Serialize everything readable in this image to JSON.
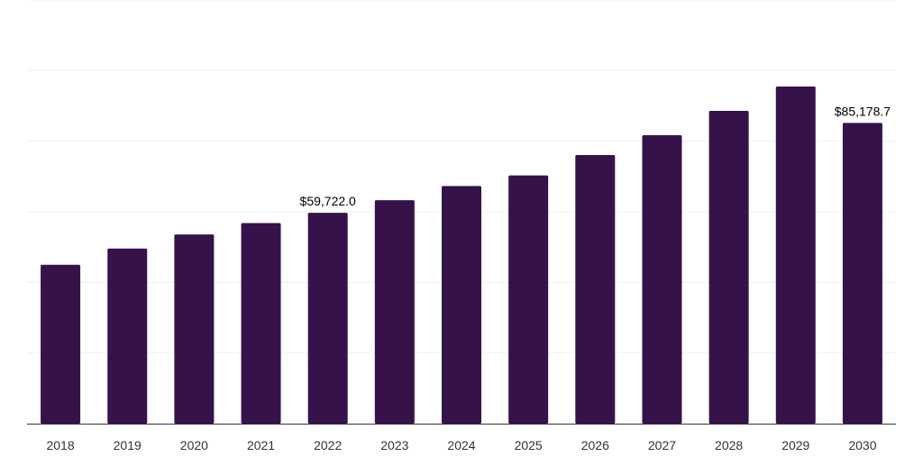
{
  "chart_data": {
    "type": "bar",
    "categories": [
      "2018",
      "2019",
      "2020",
      "2021",
      "2022",
      "2023",
      "2024",
      "2025",
      "2026",
      "2027",
      "2028",
      "2029",
      "2030"
    ],
    "values": [
      45000,
      49600,
      53600,
      56800,
      59722.0,
      63300,
      67300,
      70300,
      76100,
      81700,
      88600,
      95500,
      85178.7
    ],
    "data_labels": [
      {
        "category": "2022",
        "text": "$59,722.0"
      },
      {
        "category": "2030",
        "text": "$85,178.7"
      }
    ],
    "title": "",
    "xlabel": "",
    "ylabel": "",
    "ylim": [
      0,
      120000
    ],
    "grid": true,
    "colors": {
      "bar": "#36124a",
      "grid": "#f0f0f0",
      "axis": "#333333",
      "tick_text": "#333333",
      "label_text": "#000000"
    }
  }
}
